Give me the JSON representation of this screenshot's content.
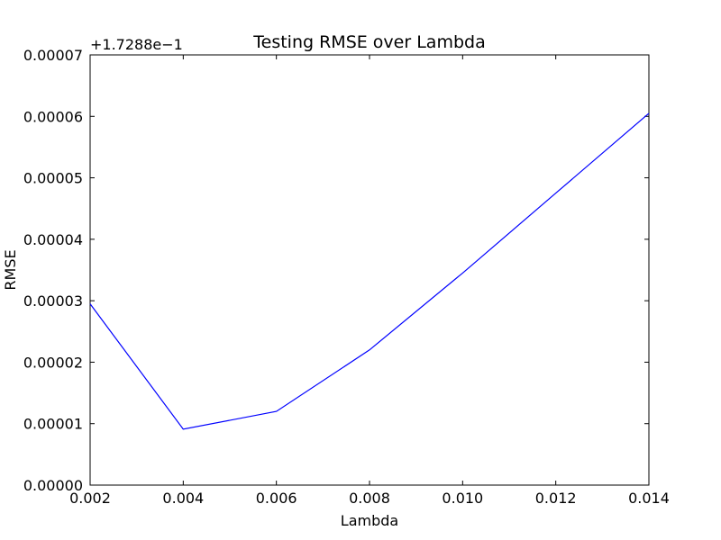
{
  "chart_data": {
    "type": "line",
    "title": "Testing RMSE over Lambda",
    "xlabel": "Lambda",
    "ylabel": "RMSE",
    "y_offset_label": "+1.7288e−1",
    "xlim": [
      0.002,
      0.014
    ],
    "ylim": [
      0.0,
      7e-05
    ],
    "x_ticks": [
      0.002,
      0.004,
      0.006,
      0.008,
      0.01,
      0.012,
      0.014
    ],
    "x_tick_labels": [
      "0.002",
      "0.004",
      "0.006",
      "0.008",
      "0.010",
      "0.012",
      "0.014"
    ],
    "y_ticks": [
      0.0,
      1e-05,
      2e-05,
      3e-05,
      4e-05,
      5e-05,
      6e-05,
      7e-05
    ],
    "y_tick_labels": [
      "0.00000",
      "0.00001",
      "0.00002",
      "0.00003",
      "0.00004",
      "0.00005",
      "0.00006",
      "0.00007"
    ],
    "grid": false,
    "series": [
      {
        "color": "#0000ff",
        "x": [
          0.002,
          0.004,
          0.006,
          0.008,
          0.01,
          0.012,
          0.014
        ],
        "y": [
          2.95e-05,
          9.1e-06,
          1.2e-05,
          2.2e-05,
          3.45e-05,
          4.75e-05,
          6.05e-05
        ]
      }
    ]
  }
}
